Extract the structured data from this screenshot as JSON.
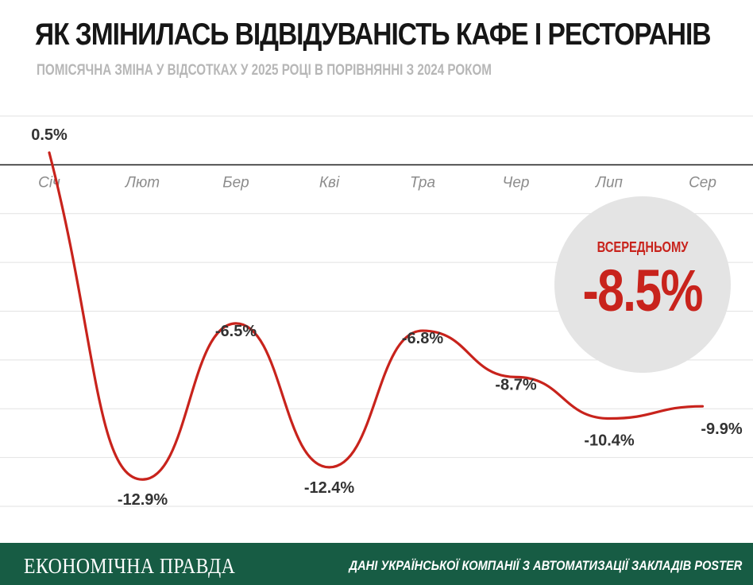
{
  "header": {
    "title": "ЯК ЗМІНИЛАСЬ ВІДВІДУВАНІСТЬ КАФЕ І РЕСТОРАНІВ",
    "subtitle": "ПОМІСЯЧНА ЗМІНА У ВІДСОТКАХ У 2025 РОЦІ В ПОРІВНЯННІ З 2024 РОКОМ"
  },
  "average": {
    "label": "ВСЕРЕДНЬОМУ",
    "value": "-8.5%"
  },
  "footer": {
    "brand": "ЕКОНОМІЧНА ПРАВДА",
    "source": "ДАНІ УКРАЇНСЬКОЇ КОМПАНІЇ З АВТОМАТИЗАЦІЇ ЗАКЛАДІВ POSTER"
  },
  "colors": {
    "line": "#c8231c",
    "footer_bg": "#175c44",
    "grid": "#e2e2e2",
    "zero_line": "#1a1a1a"
  },
  "chart_data": {
    "type": "line",
    "title": "ЯК ЗМІНИЛАСЬ ВІДВІДУВАНІСТЬ КАФЕ І РЕСТОРАНІВ",
    "subtitle": "ПОМІСЯЧНА ЗМІНА У ВІДСОТКАХ У 2025 РОЦІ В ПОРІВНЯННІ З 2024 РОКОМ",
    "categories": [
      "Січ",
      "Лют",
      "Бер",
      "Кві",
      "Тра",
      "Чер",
      "Лип",
      "Сер"
    ],
    "values": [
      0.5,
      -12.9,
      -6.5,
      -12.4,
      -6.8,
      -8.7,
      -10.4,
      -9.9
    ],
    "data_labels": [
      "0.5%",
      "-12.9%",
      "-6.5%",
      "-12.4%",
      "-6.8%",
      "-8.7%",
      "-10.4%",
      "-9.9%"
    ],
    "ylim": [
      -14,
      2
    ],
    "grid": true,
    "curve": "smooth",
    "xaxis_at_zero": true
  }
}
